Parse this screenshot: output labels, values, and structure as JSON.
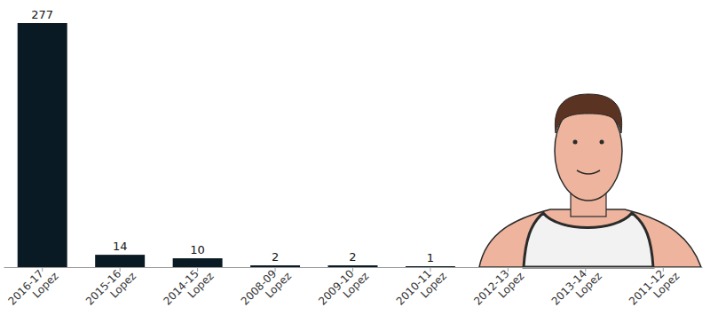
{
  "chart_data": {
    "type": "bar",
    "categories": [
      "2016-17 Lopez",
      "2015-16 Lopez",
      "2014-15 Lopez",
      "2008-09 Lopez",
      "2009-10 Lopez",
      "2010-11 Lopez",
      "2012-13 Lopez",
      "2013-14 Lopez",
      "2011-12 Lopez"
    ],
    "values": [
      277,
      14,
      10,
      2,
      2,
      1,
      null,
      null,
      null
    ],
    "color": "#0a1a24",
    "ylim": [
      0,
      277
    ],
    "data_labels": true,
    "tick_labels": "x"
  }
}
